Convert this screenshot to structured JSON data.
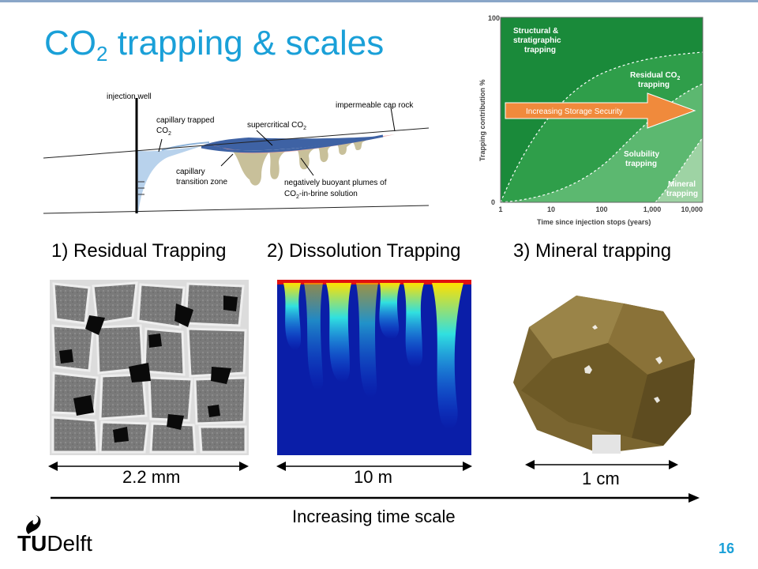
{
  "slide": {
    "title_prefix": "CO",
    "title_sub": "2",
    "title_suffix": " trapping & scales",
    "page_number": "16"
  },
  "schematic": {
    "injection_well": "injection well",
    "capillary_trapped": "capillary trapped",
    "capillary_trapped_co": "CO",
    "capillary_trapped_sub": "2",
    "supercritical": "supercritical CO",
    "supercritical_sub": "2",
    "cap_rock": "impermeable cap rock",
    "transition_line1": "capillary",
    "transition_line2": "transition zone",
    "plumes_line1": "negatively buoyant plumes of",
    "plumes_line2_co": "CO",
    "plumes_line2_sub": "2",
    "plumes_line2_rest": "-in-brine solution"
  },
  "chart_data": {
    "type": "area",
    "ylabel": "Trapping contribution %",
    "xlabel": "Time since injection stops (years)",
    "x_scale": "log",
    "x_ticks": [
      "1",
      "10",
      "100",
      "1,000",
      "10,000"
    ],
    "y_ticks": [
      "0",
      "100"
    ],
    "ylim": [
      0,
      100
    ],
    "regions": [
      {
        "name": "Structural & stratigraphic trapping",
        "line1": "Structural &",
        "line2": "stratigraphic",
        "line3": "trapping",
        "color": "#1a8a3a"
      },
      {
        "name": "Residual CO2 trapping",
        "line1": "Residual CO",
        "line1_sub": "2",
        "line2": "trapping",
        "color": "#2f9e4a"
      },
      {
        "name": "Solubility trapping",
        "line1": "Solubility",
        "line2": "trapping",
        "color": "#5cb870"
      },
      {
        "name": "Mineral trapping",
        "line1": "Mineral",
        "line2": "trapping",
        "color": "#9ed3a4"
      }
    ],
    "arrow_label": "Increasing Storage Security",
    "arrow_color": "#f08a3c"
  },
  "mechanisms": [
    {
      "label": "1) Residual Trapping",
      "scale": "2.2 mm"
    },
    {
      "label": "2) Dissolution Trapping",
      "scale": "10 m"
    },
    {
      "label": "3) Mineral trapping",
      "scale": "1 cm"
    }
  ],
  "time_axis": {
    "label": "Increasing time scale"
  },
  "logo": {
    "bold": "TU",
    "rest": "Delft"
  }
}
